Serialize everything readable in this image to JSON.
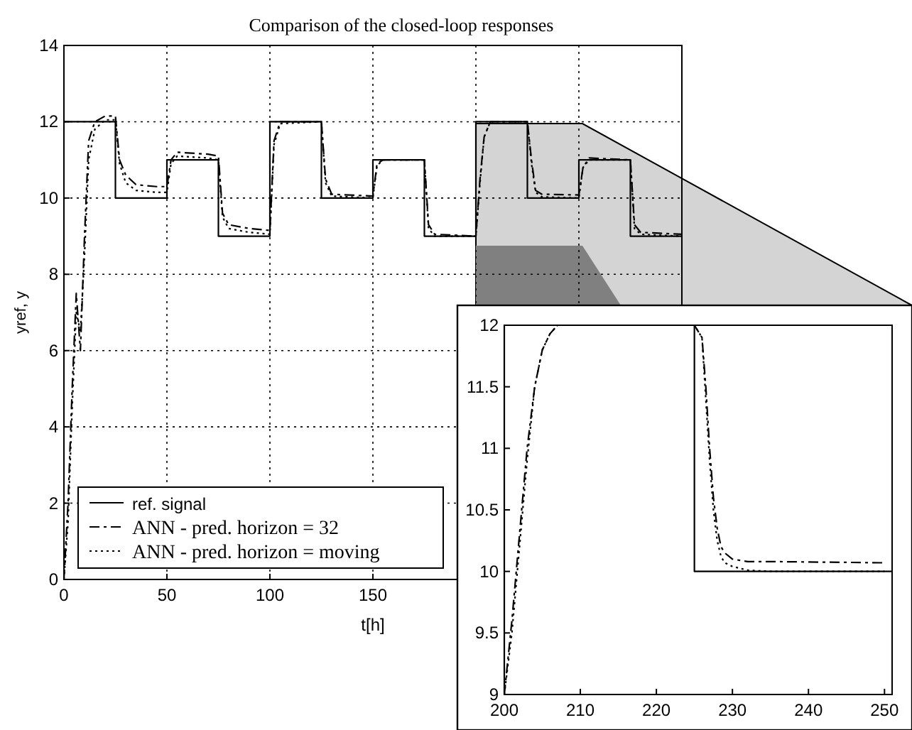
{
  "chart_data": [
    {
      "type": "line",
      "title": "Comparison of the closed-loop responses",
      "xlabel": "t[h]",
      "ylabel": "yref, y",
      "xlim": [
        0,
        300
      ],
      "ylim": [
        0,
        14
      ],
      "xticks": [
        0,
        50,
        100,
        150,
        {
          "value": 200,
          "label": null
        },
        {
          "value": 250,
          "label": null
        },
        {
          "value": 300,
          "label": null
        }
      ],
      "yticks": [
        0,
        2,
        4,
        6,
        8,
        10,
        12,
        14
      ],
      "grid": true,
      "legend": "bottom left",
      "series": [
        {
          "name": "ref. signal",
          "type": "step",
          "color": "#000000",
          "line_style": "solid",
          "x": [
            0,
            25,
            50,
            75,
            100,
            125,
            150,
            175,
            200,
            225,
            250,
            275,
            300
          ],
          "values": [
            12,
            10,
            11,
            9,
            12,
            10,
            11,
            9,
            12,
            10,
            11,
            9,
            9
          ]
        },
        {
          "name": "ANN - pred. horizon = 32",
          "color": "#000000",
          "line_style": "dashed",
          "x": [
            0,
            2,
            4,
            6,
            8,
            10,
            12,
            15,
            20,
            25,
            27,
            30,
            35,
            45,
            50,
            52,
            55,
            70,
            75,
            77,
            80,
            90,
            100,
            102,
            105,
            125,
            127,
            130,
            150,
            152,
            155,
            175,
            177,
            180,
            200,
            202,
            204,
            207,
            225,
            227,
            229,
            232,
            250,
            252,
            255,
            275,
            277,
            280,
            300
          ],
          "values": [
            0,
            2,
            5,
            7.5,
            6,
            9,
            11.5,
            12,
            12.15,
            12.15,
            11,
            10.6,
            10.35,
            10.3,
            10.3,
            11,
            11.2,
            11.15,
            11.1,
            9.6,
            9.3,
            9.2,
            9.15,
            11.5,
            12,
            12,
            10.5,
            10.1,
            10.05,
            10.9,
            11,
            11,
            9.3,
            9.05,
            9,
            10.5,
            11.6,
            12,
            12,
            11,
            10.2,
            10.1,
            10.08,
            10.8,
            11.05,
            11,
            9.3,
            9.1,
            9.05
          ]
        },
        {
          "name": "ANN - pred. horizon = moving",
          "color": "#000000",
          "line_style": "dotted",
          "x": [
            0,
            2,
            4,
            6,
            8,
            10,
            12,
            15,
            20,
            25,
            27,
            30,
            35,
            45,
            50,
            52,
            55,
            70,
            75,
            77,
            80,
            90,
            100,
            102,
            105,
            125,
            127,
            130,
            150,
            152,
            155,
            175,
            177,
            180,
            200,
            202,
            204,
            207,
            225,
            227,
            229,
            232,
            250,
            252,
            255,
            275,
            277,
            280,
            300
          ],
          "values": [
            0,
            1.5,
            4.5,
            7,
            6.5,
            8.5,
            11,
            11.8,
            12.05,
            12.05,
            10.9,
            10.4,
            10.2,
            10.15,
            10.15,
            10.9,
            11.1,
            11.05,
            11,
            9.5,
            9.2,
            9.1,
            9.05,
            11.4,
            11.95,
            12,
            10.4,
            10.05,
            10,
            10.85,
            11,
            11,
            9.2,
            9,
            9,
            10.4,
            11.6,
            12,
            12,
            10.9,
            10.15,
            10.03,
            10,
            10.8,
            11,
            11,
            9.2,
            9.05,
            9
          ]
        }
      ]
    },
    {
      "type": "line",
      "xlim": [
        200,
        251
      ],
      "ylim": [
        9,
        12
      ],
      "xticks": [
        200,
        210,
        220,
        230,
        240,
        250
      ],
      "yticks": [
        9,
        9.5,
        10,
        10.5,
        11,
        11.5,
        12
      ],
      "grid": false,
      "series": [
        {
          "type": "step",
          "color": "#000000",
          "line_style": "solid",
          "x": [
            200,
            200,
            225,
            251
          ],
          "values": [
            9,
            12,
            10,
            10
          ]
        },
        {
          "color": "#000000",
          "line_style": "dashed",
          "x": [
            200,
            201,
            202,
            203,
            204,
            205,
            206,
            207,
            210,
            225,
            226,
            226.5,
            227,
            227.5,
            228,
            228.5,
            229,
            230,
            232,
            235,
            250
          ],
          "values": [
            9,
            9.6,
            10.3,
            11,
            11.5,
            11.8,
            11.93,
            12,
            12,
            12,
            11.9,
            11.5,
            11,
            10.6,
            10.35,
            10.2,
            10.15,
            10.1,
            10.08,
            10.08,
            10.07
          ]
        },
        {
          "color": "#000000",
          "line_style": "dotted",
          "x": [
            200,
            201,
            202,
            203,
            204,
            205,
            206,
            207,
            210,
            225,
            226,
            226.5,
            227,
            227.5,
            228,
            228.5,
            229,
            230,
            232,
            235,
            250
          ],
          "values": [
            9,
            9.5,
            10.2,
            10.9,
            11.5,
            11.8,
            11.93,
            12,
            12,
            12,
            11.9,
            11.4,
            10.9,
            10.5,
            10.25,
            10.12,
            10.07,
            10.04,
            10.01,
            10,
            10
          ]
        }
      ]
    }
  ]
}
